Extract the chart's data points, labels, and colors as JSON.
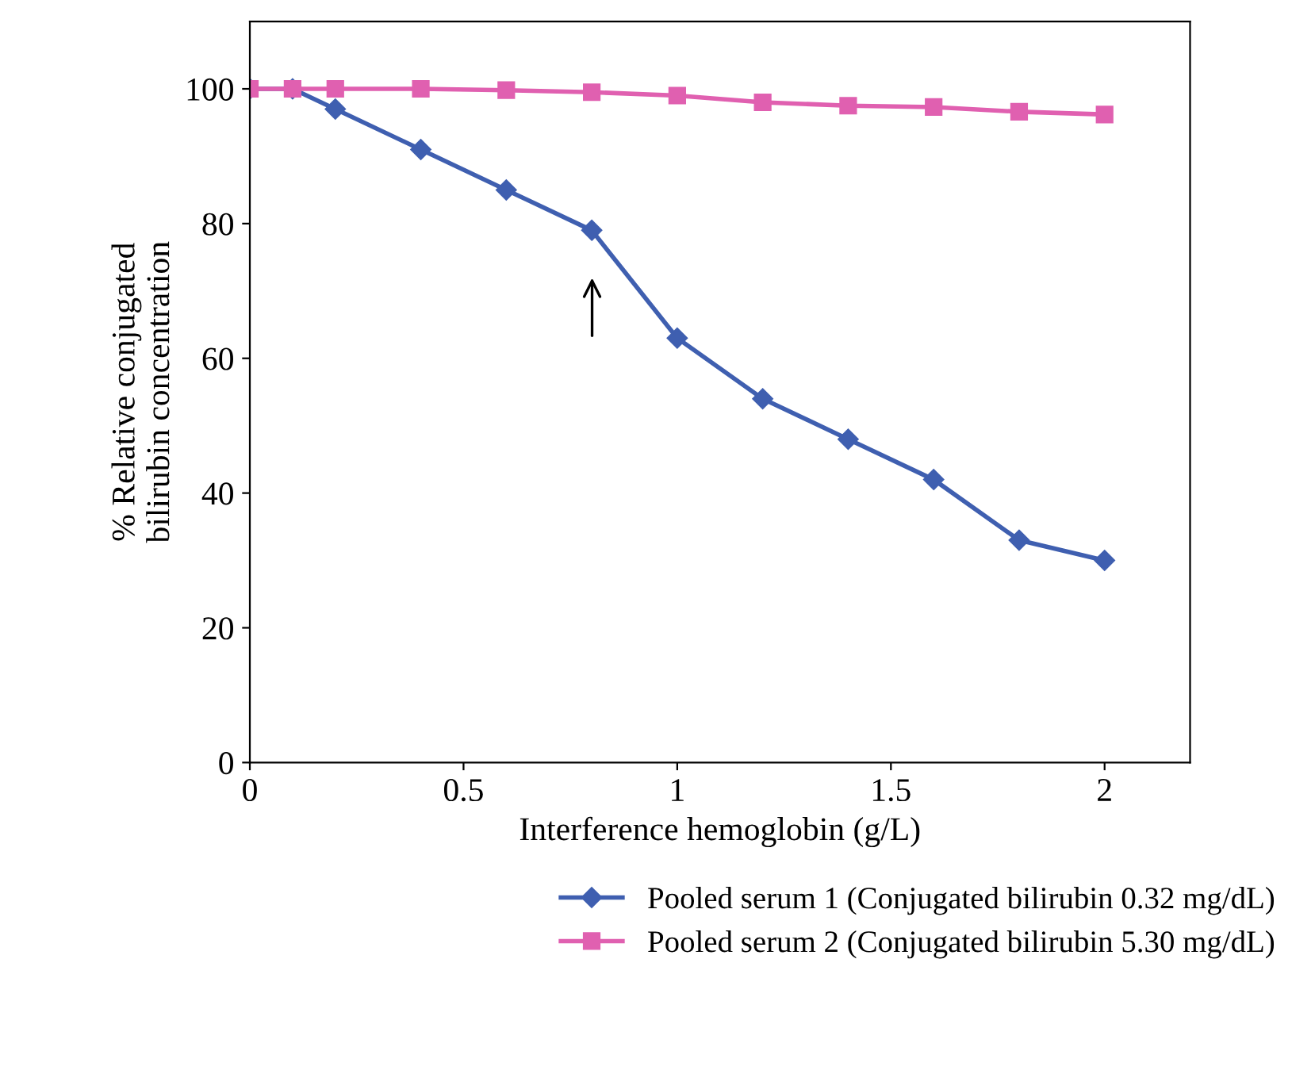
{
  "chart_data": {
    "type": "line",
    "xlabel": "Interference hemoglobin (g/L)",
    "ylabel": "% Relative conjugated\nbilirubin concentration",
    "x": [
      0,
      0.1,
      0.2,
      0.4,
      0.6,
      0.8,
      1.0,
      1.2,
      1.4,
      1.6,
      1.8,
      2.0
    ],
    "series": [
      {
        "name": "Pooled serum 1 (Conjugated bilirubin 0.32 mg/dL)",
        "color": "#3f5fb0",
        "marker": "diamond",
        "values": [
          100,
          100,
          97,
          91,
          85,
          79,
          63,
          54,
          48,
          42,
          33,
          30
        ]
      },
      {
        "name": "Pooled serum 2 (Conjugated bilirubin 5.30 mg/dL)",
        "color": "#e060b0",
        "marker": "square",
        "values": [
          100,
          100,
          100,
          100,
          99.8,
          99.5,
          99,
          98,
          97.5,
          97.3,
          96.6,
          96.2
        ]
      }
    ],
    "xlim": [
      0,
      2.2
    ],
    "xticks": [
      0,
      0.5,
      1,
      1.5,
      2
    ],
    "ylim": [
      0,
      110
    ],
    "yticks": [
      0,
      20,
      40,
      60,
      80,
      100
    ],
    "legend": "bottom",
    "grid": false,
    "line_style": "solid"
  }
}
